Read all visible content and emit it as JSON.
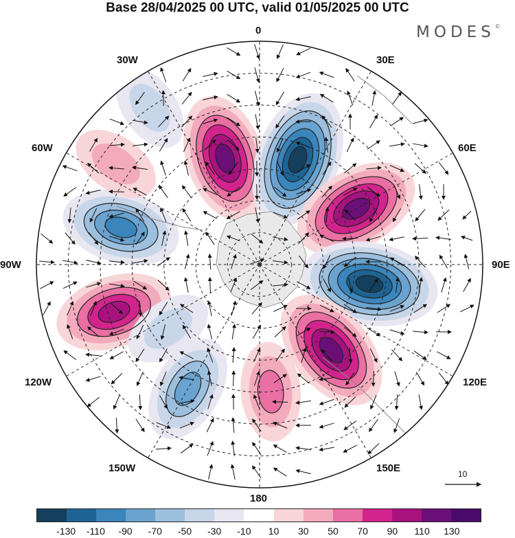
{
  "header": {
    "title": "Base 28/04/2025 00 UTC, valid 01/05/2025 00 UTC",
    "brand": "MODES",
    "brand_mark": "©"
  },
  "map": {
    "projection": "south-polar-stereographic",
    "longitude_labels": {
      "top": "0",
      "upper_left": "30W",
      "upper_right": "30E",
      "left_upper": "60W",
      "right_upper": "60E",
      "left": "90W",
      "right": "90E",
      "left_lower": "120W",
      "right_lower": "120E",
      "lower_left": "150W",
      "lower_right": "150E",
      "bottom": "180"
    },
    "vector_scale_label": "10",
    "anomaly_centers": [
      {
        "lon": -18,
        "lat": -55,
        "value": 110
      },
      {
        "lon": 20,
        "lat": -55,
        "value": -130
      },
      {
        "lon": 60,
        "lat": -55,
        "value": 110
      },
      {
        "lon": 100,
        "lat": -55,
        "value": -130
      },
      {
        "lon": 140,
        "lat": -55,
        "value": 110
      },
      {
        "lon": 175,
        "lat": -50,
        "value": 50
      },
      {
        "lon": -150,
        "lat": -45,
        "value": -70
      },
      {
        "lon": -108,
        "lat": -42,
        "value": 90
      },
      {
        "lon": -75,
        "lat": -45,
        "value": -90
      },
      {
        "lon": -55,
        "lat": -35,
        "value": 30
      },
      {
        "lon": -35,
        "lat": -30,
        "value": -30
      },
      {
        "lon": -125,
        "lat": -55,
        "value": -30
      }
    ]
  },
  "colorbar": {
    "ticks": [
      "-130",
      "-110",
      "-90",
      "-70",
      "-50",
      "-30",
      "-10",
      "10",
      "30",
      "50",
      "70",
      "90",
      "110",
      "130"
    ],
    "colors": [
      "#14405e",
      "#1d6494",
      "#3a85bb",
      "#6aa3cf",
      "#9cbfdd",
      "#c8d6e9",
      "#e8e6f0",
      "#ffffff",
      "#f8d5d8",
      "#f3aabd",
      "#ea6fa2",
      "#d2248c",
      "#a8127f",
      "#6b0f78",
      "#4a0a6a"
    ]
  }
}
